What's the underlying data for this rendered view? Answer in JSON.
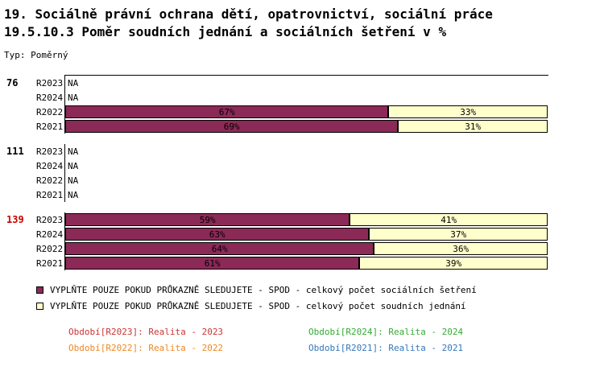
{
  "header": {
    "title_line1": "19. Sociálně právní ochrana dětí, opatrovnictví, sociální práce",
    "title_line2": "19.5.10.3 Poměr soudních jednání a sociálních šetření v %",
    "type_label": "Typ: Poměrný"
  },
  "chart_data": {
    "type": "bar",
    "orientation": "horizontal",
    "stacked": true,
    "unit": "%",
    "x_range": [
      0,
      100
    ],
    "na_text": "NA",
    "series_names": [
      "VYPLŇTE POUZE POKUD PRŮKAZNĚ SLEDUJETE - SPOD - celkový počet sociálních šetření",
      "VYPLŇTE POUZE POKUD PRŮKAZNĚ SLEDUJETE - SPOD - celkový počet soudních jednání"
    ],
    "series_colors": [
      "#8B2A57",
      "#FFFFCC"
    ],
    "groups": [
      {
        "label": "76",
        "label_color": "#000000",
        "rows": [
          {
            "period": "R2023",
            "values": null
          },
          {
            "period": "R2024",
            "values": null
          },
          {
            "period": "R2022",
            "values": [
              67,
              33
            ]
          },
          {
            "period": "R2021",
            "values": [
              69,
              31
            ]
          }
        ]
      },
      {
        "label": "111",
        "label_color": "#000000",
        "rows": [
          {
            "period": "R2023",
            "values": null
          },
          {
            "period": "R2024",
            "values": null
          },
          {
            "period": "R2022",
            "values": null
          },
          {
            "period": "R2021",
            "values": null
          }
        ]
      },
      {
        "label": "139",
        "label_color": "#CC0000",
        "rows": [
          {
            "period": "R2023",
            "values": [
              59,
              41
            ]
          },
          {
            "period": "R2024",
            "values": [
              63,
              37
            ]
          },
          {
            "period": "R2022",
            "values": [
              64,
              36
            ]
          },
          {
            "period": "R2021",
            "values": [
              61,
              39
            ]
          }
        ]
      }
    ]
  },
  "legend": {
    "items": [
      {
        "label": "VYPLŇTE POUZE POKUD PRŮKAZNĚ SLEDUJETE - SPOD - celkový počet sociálních šetření",
        "color": "#8B2A57"
      },
      {
        "label": "VYPLŇTE POUZE POKUD PRŮKAZNĚ SLEDUJETE - SPOD - celkový počet soudních jednání",
        "color": "#FFFFCC"
      }
    ]
  },
  "footer": {
    "entries": [
      {
        "label": "Období[R2023]:",
        "value": "Realita - 2023",
        "color": "#CC3333"
      },
      {
        "label": "Období[R2024]:",
        "value": "Realita - 2024",
        "color": "#33AA33"
      },
      {
        "label": "Období[R2022]:",
        "value": "Realita - 2022",
        "color": "#EE8822"
      },
      {
        "label": "Období[R2021]:",
        "value": "Realita - 2021",
        "color": "#3377BB"
      }
    ]
  }
}
